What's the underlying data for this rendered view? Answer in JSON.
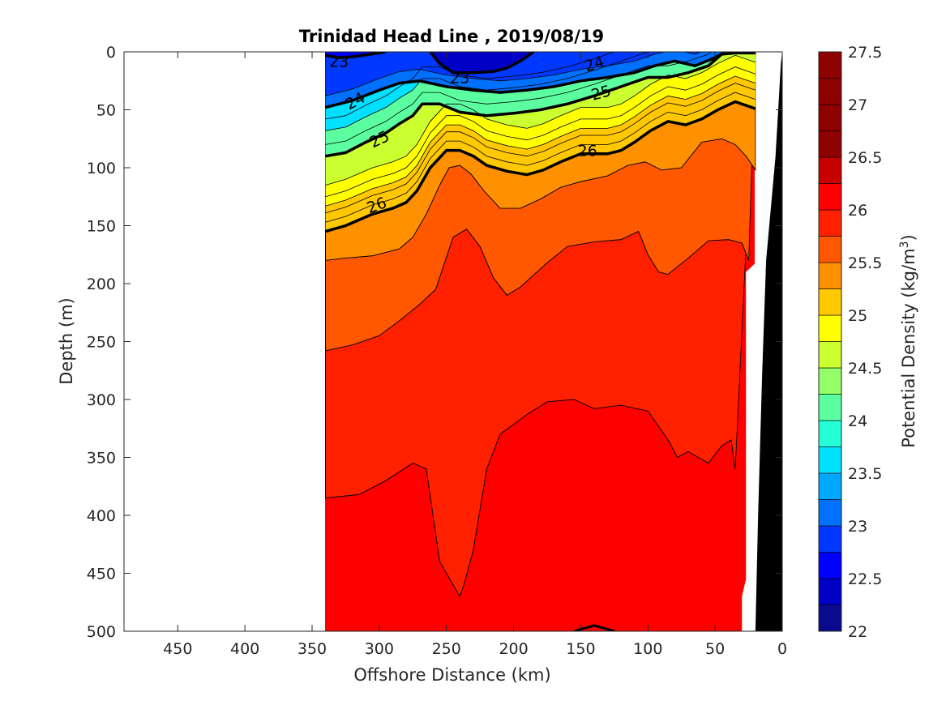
{
  "chart_data": {
    "type": "heatmap",
    "subtype": "filled-contour-section",
    "title": "Trinidad Head Line , 2019/08/19",
    "xlabel": "Offshore Distance (km)",
    "ylabel": "Depth (m)",
    "xlim": [
      490,
      0
    ],
    "x_reversed": true,
    "ylim": [
      0,
      500
    ],
    "y_reversed": true,
    "x_ticks": [
      450,
      400,
      350,
      300,
      250,
      200,
      150,
      100,
      50,
      0
    ],
    "y_ticks": [
      0,
      50,
      100,
      150,
      200,
      250,
      300,
      350,
      400,
      450,
      500
    ],
    "grid": false,
    "colorbar": {
      "label": "Potential Density (kg/m",
      "label_superscript": "3",
      "label_suffix": ")",
      "min": 22,
      "max": 27.5,
      "step": 0.25,
      "ticks": [
        "22",
        "22.5",
        "23",
        "23.5",
        "24",
        "24.5",
        "25",
        "25.5",
        "26",
        "26.5",
        "27",
        "27.5"
      ],
      "tick_values": [
        22,
        22.5,
        23,
        23.5,
        24,
        24.5,
        25,
        25.5,
        26,
        26.5,
        27,
        27.5
      ],
      "colors": [
        "#0a0a8f",
        "#0000c7",
        "#0000ff",
        "#0038ff",
        "#0070ff",
        "#00a8ff",
        "#00e0ff",
        "#24ffd8",
        "#5cffa0",
        "#94ff68",
        "#ccff30",
        "#ffff00",
        "#ffc800",
        "#ff9000",
        "#ff5800",
        "#ff2000",
        "#ff0000",
        "#c70000",
        "#8f0000",
        "#8f0000",
        "#8f0000",
        "#8f0000"
      ]
    },
    "data_extent_km": [
      340,
      20
    ],
    "labeled_isopycnals": [
      {
        "value": 23,
        "label": "23",
        "x": [
          340,
          330,
          318,
          295
        ],
        "y": [
          3,
          5,
          4,
          0
        ]
      },
      {
        "value": 23,
        "label": "23",
        "x": [
          262,
          255,
          245,
          230,
          215,
          205,
          195,
          185
        ],
        "y": [
          0,
          10,
          18,
          18,
          17,
          14,
          8,
          0
        ]
      },
      {
        "value": 24,
        "label": "24",
        "x": [
          340,
          320,
          300,
          285,
          270,
          250,
          230,
          210,
          190,
          170,
          150,
          130,
          110,
          95,
          80,
          65,
          52,
          42
        ],
        "y": [
          48,
          42,
          33,
          27,
          25,
          30,
          33,
          35,
          33,
          30,
          25,
          22,
          18,
          12,
          8,
          12,
          6,
          0
        ]
      },
      {
        "value": 25,
        "label": "25",
        "x": [
          340,
          325,
          310,
          295,
          285,
          275,
          268,
          255,
          240,
          220,
          200,
          180,
          160,
          140,
          120,
          100,
          85,
          70,
          55,
          45,
          35,
          20
        ],
        "y": [
          90,
          87,
          78,
          70,
          62,
          55,
          45,
          45,
          52,
          55,
          53,
          50,
          45,
          38,
          30,
          22,
          22,
          18,
          12,
          2,
          1,
          1
        ]
      },
      {
        "value": 26,
        "label": "26",
        "x": [
          340,
          325,
          305,
          290,
          280,
          272,
          262,
          250,
          240,
          230,
          220,
          205,
          190,
          178,
          165,
          150,
          130,
          120,
          110,
          98,
          85,
          72,
          60,
          48,
          35,
          20
        ],
        "y": [
          155,
          150,
          140,
          135,
          130,
          120,
          100,
          85,
          85,
          90,
          98,
          103,
          106,
          102,
          95,
          88,
          88,
          85,
          78,
          68,
          60,
          63,
          58,
          50,
          43,
          49
        ]
      }
    ],
    "thin_isopycnals": [
      {
        "value": 26.5,
        "x": [
          340,
          325,
          305,
          285,
          275,
          265,
          255,
          248,
          240,
          232,
          222,
          210,
          195,
          180,
          165,
          150,
          130,
          115,
          102,
          90,
          75,
          60,
          45,
          35,
          27,
          20
        ],
        "y": [
          180,
          178,
          176,
          170,
          160,
          140,
          115,
          100,
          98,
          105,
          120,
          135,
          135,
          127,
          117,
          112,
          107,
          98,
          95,
          102,
          100,
          78,
          75,
          80,
          90,
          102
        ]
      },
      {
        "value": 26.75,
        "x": [
          340,
          320,
          300,
          285,
          270,
          258,
          245,
          235,
          225,
          215,
          205,
          195,
          175,
          160,
          140,
          120,
          107,
          100,
          92,
          85,
          70,
          55,
          40,
          30,
          25
        ],
        "y": [
          258,
          253,
          245,
          232,
          218,
          205,
          160,
          153,
          168,
          195,
          210,
          203,
          182,
          168,
          164,
          162,
          155,
          175,
          190,
          192,
          178,
          163,
          162,
          165,
          180
        ]
      },
      {
        "value": 27.0,
        "x": [
          340,
          315,
          295,
          275,
          265,
          255,
          245,
          240,
          237,
          230,
          220,
          210,
          190,
          175,
          155,
          140,
          120,
          100,
          85,
          78,
          70,
          55,
          45,
          38,
          35
        ],
        "y": [
          385,
          382,
          370,
          355,
          360,
          440,
          460,
          470,
          460,
          430,
          360,
          330,
          313,
          302,
          300,
          308,
          305,
          310,
          335,
          350,
          345,
          355,
          340,
          335,
          360
        ]
      }
    ],
    "bottom_contour": {
      "value": 27.25,
      "x": [
        155,
        140,
        125
      ],
      "y": [
        500,
        495,
        500
      ]
    },
    "bathymetry_km": [
      20,
      18,
      15,
      12,
      5,
      1,
      0
    ],
    "bathymetry_depth": [
      500,
      400,
      280,
      180,
      90,
      10,
      0
    ]
  }
}
